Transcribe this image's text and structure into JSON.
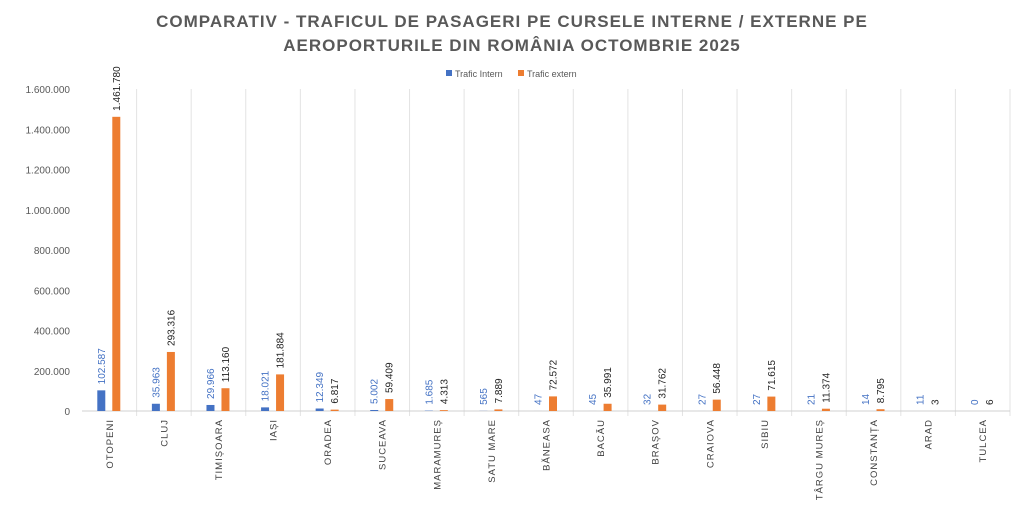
{
  "chart_data": {
    "type": "bar",
    "title_lines": [
      "COMPARATIV - TRAFICUL DE PASAGERI PE CURSELE INTERNE / EXTERNE PE",
      "AEROPORTURILE DIN ROMÂNIA OCTOMBRIE 2025"
    ],
    "xlabel": "",
    "ylabel": "",
    "ylim": [
      0,
      1600000
    ],
    "yticks": [
      "0",
      "200.000",
      "400.000",
      "600.000",
      "800.000",
      "1.000.000",
      "1.200.000",
      "1.400.000",
      "1.600.000"
    ],
    "legend_position": "top",
    "categories": [
      "OTOPENI",
      "CLUJ",
      "TIMIȘOARA",
      "IAȘI",
      "ORADEA",
      "SUCEAVA",
      "MARAMUREȘ",
      "SATU MARE",
      "BĂNEASA",
      "BACĂU",
      "BRAȘOV",
      "CRAIOVA",
      "SIBIU",
      "TÂRGU MUREȘ",
      "CONSTANȚA",
      "ARAD",
      "TULCEA"
    ],
    "series": [
      {
        "name": "Trafic Intern",
        "color": "#4472C4",
        "label_color": "#4472C4",
        "values": [
          102587,
          35963,
          29966,
          18021,
          12349,
          5002,
          1685,
          565,
          47,
          45,
          32,
          27,
          27,
          21,
          14,
          11,
          0
        ],
        "labels": [
          "102.587",
          "35.963",
          "29.966",
          "18.021",
          "12.349",
          "5.002",
          "1.685",
          "565",
          "47",
          "45",
          "32",
          "27",
          "27",
          "21",
          "14",
          "11",
          "0"
        ]
      },
      {
        "name": "Trafic extern",
        "color": "#ED7D31",
        "label_color": "#222222",
        "values": [
          1461780,
          293316,
          113160,
          181884,
          6817,
          59409,
          4313,
          7889,
          72572,
          35991,
          31762,
          56448,
          71615,
          11374,
          8795,
          3,
          6
        ],
        "labels": [
          "1.461.780",
          "293.316",
          "113.160",
          "181.884",
          "6.817",
          "59.409",
          "4.313",
          "7.889",
          "72.572",
          "35.991",
          "31.762",
          "56.448",
          "71.615",
          "11.374",
          "8.795",
          "3",
          "6"
        ]
      }
    ],
    "grid": "vertical category separators"
  }
}
